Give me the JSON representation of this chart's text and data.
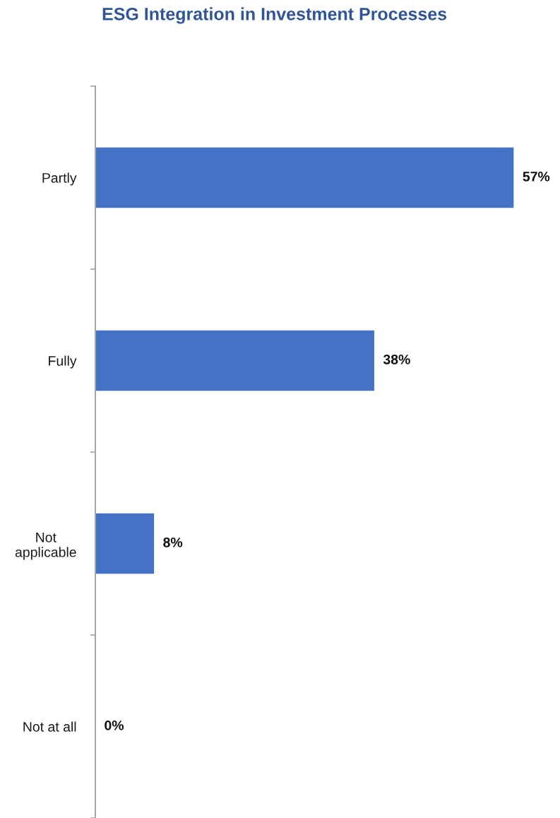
{
  "chart_data": {
    "type": "bar",
    "orientation": "horizontal",
    "title": "ESG Integration in Investment Processes",
    "categories": [
      "Partly",
      "Fully",
      "Not\napplicable",
      "Not at all"
    ],
    "values": [
      57,
      38,
      8,
      0
    ],
    "value_labels": [
      "57%",
      "38%",
      "8%",
      "0%"
    ],
    "color": "#4472c4",
    "tick_labels": "y",
    "grid": false,
    "legend": false
  }
}
